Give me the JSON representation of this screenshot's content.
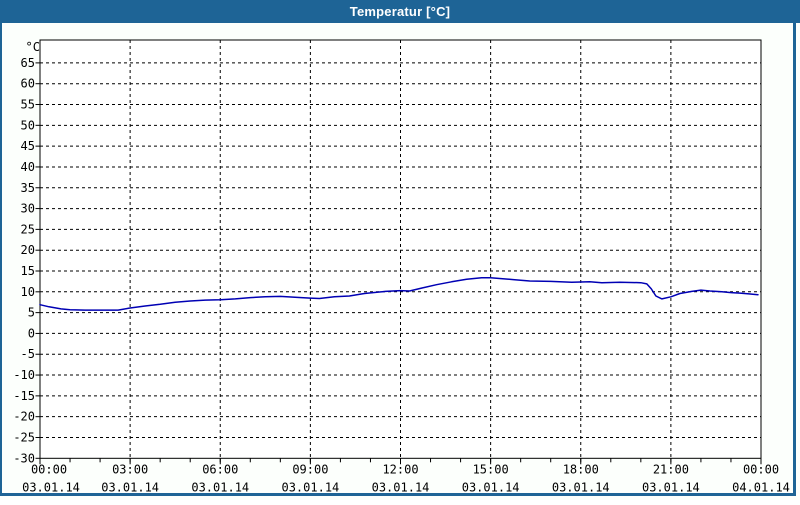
{
  "window": {
    "title": "Temperatur [°C]"
  },
  "colors": {
    "titlebar_bg": "#1E6496",
    "titlebar_text": "#FFFFFF",
    "window_border": "#1E6496",
    "window_bg": "#FCFFFC",
    "plot_bg": "#FFFFFF",
    "plot_border": "#000000",
    "gridline": "#000000",
    "tick_label": "#000000",
    "series_line": "#0000B4"
  },
  "chart_data": {
    "type": "line",
    "title": "Temperatur [°C]",
    "y_axis_unit_label": "°C",
    "xlabel": "",
    "ylabel": "°C",
    "ylim": [
      -30,
      70.5
    ],
    "y_tick_step": 5,
    "y_tick_labels": [
      65,
      60,
      55,
      50,
      45,
      40,
      35,
      30,
      25,
      20,
      15,
      10,
      5,
      0,
      -5,
      -10,
      -15,
      -20,
      -25,
      -30
    ],
    "xlim_hours": [
      0,
      24
    ],
    "x_minor_tick_step_hours": 1,
    "x_major_ticks": [
      {
        "hour": 0,
        "time": "00:00",
        "date": "03.01.14"
      },
      {
        "hour": 3,
        "time": "03:00",
        "date": "03.01.14"
      },
      {
        "hour": 6,
        "time": "06:00",
        "date": "03.01.14"
      },
      {
        "hour": 9,
        "time": "09:00",
        "date": "03.01.14"
      },
      {
        "hour": 12,
        "time": "12:00",
        "date": "03.01.14"
      },
      {
        "hour": 15,
        "time": "15:00",
        "date": "03.01.14"
      },
      {
        "hour": 18,
        "time": "18:00",
        "date": "03.01.14"
      },
      {
        "hour": 21,
        "time": "21:00",
        "date": "03.01.14"
      },
      {
        "hour": 24,
        "time": "00:00",
        "date": "04.01.14"
      }
    ],
    "grid": "dashed",
    "legend": "none",
    "series": [
      {
        "name": "Temperatur",
        "color": "#0000B4",
        "points_hour_degC": [
          [
            0.0,
            6.9
          ],
          [
            0.3,
            6.4
          ],
          [
            0.7,
            5.9
          ],
          [
            1.0,
            5.7
          ],
          [
            1.5,
            5.6
          ],
          [
            2.0,
            5.6
          ],
          [
            2.6,
            5.6
          ],
          [
            3.0,
            6.1
          ],
          [
            3.5,
            6.6
          ],
          [
            4.0,
            7.0
          ],
          [
            4.5,
            7.5
          ],
          [
            5.0,
            7.8
          ],
          [
            5.5,
            8.0
          ],
          [
            6.0,
            8.1
          ],
          [
            6.5,
            8.3
          ],
          [
            7.0,
            8.6
          ],
          [
            7.5,
            8.8
          ],
          [
            8.0,
            8.9
          ],
          [
            8.7,
            8.6
          ],
          [
            9.0,
            8.5
          ],
          [
            9.3,
            8.4
          ],
          [
            9.8,
            8.8
          ],
          [
            10.3,
            9.0
          ],
          [
            10.8,
            9.6
          ],
          [
            11.5,
            10.1
          ],
          [
            12.0,
            10.3
          ],
          [
            12.3,
            10.2
          ],
          [
            12.7,
            10.9
          ],
          [
            13.2,
            11.7
          ],
          [
            13.7,
            12.4
          ],
          [
            14.2,
            13.0
          ],
          [
            14.7,
            13.4
          ],
          [
            15.0,
            13.4
          ],
          [
            15.3,
            13.2
          ],
          [
            15.8,
            12.9
          ],
          [
            16.3,
            12.6
          ],
          [
            17.0,
            12.5
          ],
          [
            17.7,
            12.3
          ],
          [
            18.3,
            12.4
          ],
          [
            18.7,
            12.2
          ],
          [
            19.3,
            12.3
          ],
          [
            20.0,
            12.2
          ],
          [
            20.2,
            11.9
          ],
          [
            20.35,
            10.7
          ],
          [
            20.5,
            9.0
          ],
          [
            20.7,
            8.3
          ],
          [
            21.0,
            8.8
          ],
          [
            21.3,
            9.6
          ],
          [
            21.7,
            10.1
          ],
          [
            22.0,
            10.4
          ],
          [
            22.3,
            10.2
          ],
          [
            22.7,
            10.0
          ],
          [
            23.0,
            9.8
          ],
          [
            23.3,
            9.7
          ],
          [
            23.6,
            9.5
          ],
          [
            23.9,
            9.3
          ]
        ]
      }
    ]
  }
}
